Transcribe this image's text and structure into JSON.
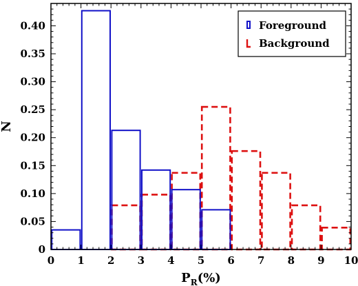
{
  "chart_data": {
    "type": "bar",
    "xlabel_main": "P",
    "xlabel_sub": "R",
    "xlabel_suffix": "(%)",
    "ylabel": "N",
    "xlim": [
      0,
      10
    ],
    "ylim": [
      0,
      0.44
    ],
    "x_ticks": [
      "0",
      "1",
      "2",
      "3",
      "4",
      "5",
      "6",
      "7",
      "8",
      "9",
      "10"
    ],
    "y_ticks": [
      "0",
      "0.05",
      "0.10",
      "0.15",
      "0.20",
      "0.25",
      "0.30",
      "0.35",
      "0.40"
    ],
    "legend_placement": "top-right",
    "series": [
      {
        "name": "Foreground",
        "color": "#1010c8",
        "line_style": "solid",
        "bins": [
          {
            "x0": 0,
            "x1": 1,
            "value": 0.035
          },
          {
            "x0": 1,
            "x1": 2,
            "value": 0.427
          },
          {
            "x0": 2,
            "x1": 3,
            "value": 0.213
          },
          {
            "x0": 3,
            "x1": 4,
            "value": 0.142
          },
          {
            "x0": 4,
            "x1": 5,
            "value": 0.107
          },
          {
            "x0": 5,
            "x1": 6,
            "value": 0.071
          }
        ]
      },
      {
        "name": "Background",
        "color": "#dd1111",
        "line_style": "dashed",
        "bins": [
          {
            "x0": 2,
            "x1": 3,
            "value": 0.079
          },
          {
            "x0": 3,
            "x1": 4,
            "value": 0.098
          },
          {
            "x0": 4,
            "x1": 5,
            "value": 0.137
          },
          {
            "x0": 5,
            "x1": 6,
            "value": 0.255
          },
          {
            "x0": 6,
            "x1": 7,
            "value": 0.176
          },
          {
            "x0": 7,
            "x1": 8,
            "value": 0.137
          },
          {
            "x0": 8,
            "x1": 9,
            "value": 0.079
          },
          {
            "x0": 9,
            "x1": 10,
            "value": 0.039
          }
        ]
      }
    ]
  }
}
